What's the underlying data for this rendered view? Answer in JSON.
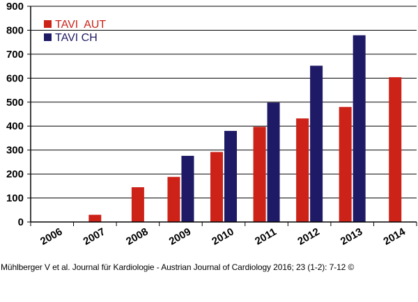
{
  "chart_data": {
    "type": "bar",
    "categories": [
      "2006",
      "2007",
      "2008",
      "2009",
      "2010",
      "2011",
      "2012",
      "2013",
      "2014"
    ],
    "series": [
      {
        "name": "TAVI  AUT",
        "color": "#cc2218",
        "values": [
          0,
          30,
          145,
          188,
          292,
          397,
          432,
          480,
          604
        ]
      },
      {
        "name": "TAVI CH",
        "color": "#1f1a66",
        "values": [
          null,
          null,
          null,
          276,
          380,
          498,
          652,
          779,
          null
        ]
      }
    ],
    "ylim": [
      0,
      900
    ],
    "yticks": [
      "0",
      "100",
      "200",
      "300",
      "400",
      "500",
      "600",
      "700",
      "800",
      "900"
    ],
    "grid": true,
    "legend_position": "top-left",
    "title": "",
    "xlabel": "",
    "ylabel": ""
  },
  "citation": "Mühlberger V et al. Journal für Kardiologie - Austrian Journal of Cardiology 2016; 23 (1-2): 7-12 ©"
}
